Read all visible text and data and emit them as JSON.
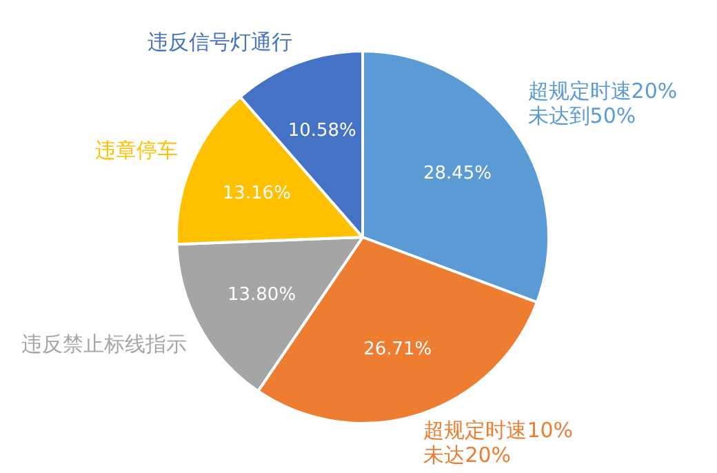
{
  "chart_data": {
    "type": "pie",
    "categories": [
      "超规定时速20%\n未达到50%",
      "超规定时速10%\n未达20%",
      "违反禁止标线指示",
      "违章停车",
      "违反信号灯通行"
    ],
    "values": [
      28.45,
      26.71,
      13.8,
      13.16,
      10.58
    ],
    "value_labels": [
      "28.45%",
      "26.71%",
      "13.80%",
      "13.16%",
      "10.58%"
    ],
    "colors": [
      "#5b9bd5",
      "#ed7d31",
      "#a5a5a5",
      "#ffc000",
      "#4472c4"
    ],
    "legend": false
  }
}
